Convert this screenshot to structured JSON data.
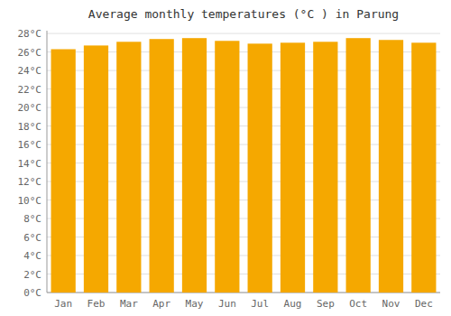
{
  "chart_data": {
    "type": "bar",
    "title": "Average monthly temperatures (°C ) in Parung",
    "categories": [
      "Jan",
      "Feb",
      "Mar",
      "Apr",
      "May",
      "Jun",
      "Jul",
      "Aug",
      "Sep",
      "Oct",
      "Nov",
      "Dec"
    ],
    "values": [
      26.3,
      26.7,
      27.1,
      27.4,
      27.5,
      27.2,
      26.9,
      27.0,
      27.1,
      27.5,
      27.3,
      27.0
    ],
    "color": "#F5A800",
    "ylim": [
      0,
      28.3
    ],
    "yticks": [
      {
        "value": 0,
        "label": "0°C"
      },
      {
        "value": 2,
        "label": "2°C"
      },
      {
        "value": 4,
        "label": "4°C"
      },
      {
        "value": 6,
        "label": "6°C"
      },
      {
        "value": 8,
        "label": "8°C"
      },
      {
        "value": 10,
        "label": "10°C"
      },
      {
        "value": 12,
        "label": "12°C"
      },
      {
        "value": 14,
        "label": "14°C"
      },
      {
        "value": 16,
        "label": "16°C"
      },
      {
        "value": 18,
        "label": "18°C"
      },
      {
        "value": 20,
        "label": "20°C"
      },
      {
        "value": 22,
        "label": "22°C"
      },
      {
        "value": 24,
        "label": "24°C"
      },
      {
        "value": 26,
        "label": "26°C"
      },
      {
        "value": 28,
        "label": "28°C"
      }
    ],
    "grid": true
  }
}
